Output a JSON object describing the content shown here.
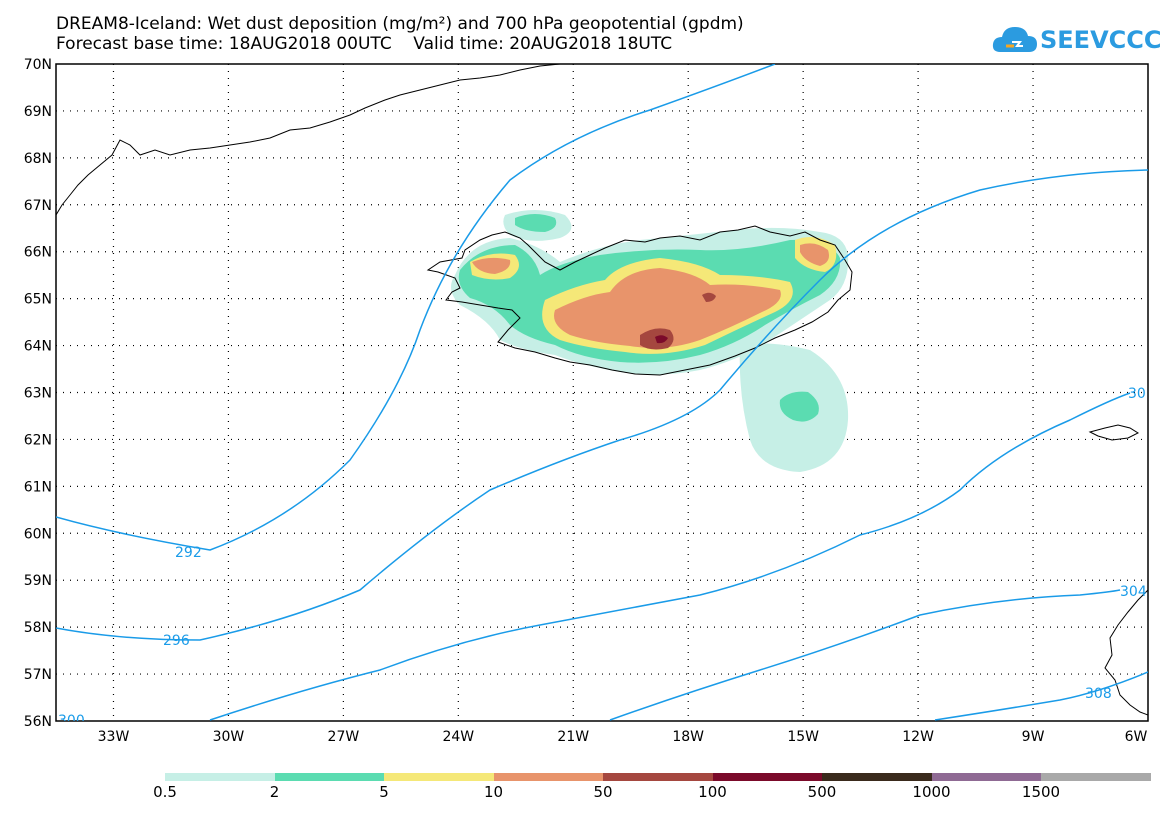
{
  "header": {
    "title_line1": "DREAM8-Iceland: Wet dust deposition (mg/m²) and 700 hPa geopotential (gpdm)",
    "title_line2": "Forecast base time: 18AUG2018 00UTC    Valid time: 20AUG2018 18UTC"
  },
  "logo": {
    "text": "SEEVCCC",
    "icon": "cloud-icon",
    "color": "#2b9be0"
  },
  "map": {
    "lat_range": [
      56,
      70
    ],
    "lon_range": [
      -34.5,
      -6
    ],
    "lat_labels": [
      "70N",
      "69N",
      "68N",
      "67N",
      "66N",
      "65N",
      "64N",
      "63N",
      "62N",
      "61N",
      "60N",
      "59N",
      "58N",
      "57N",
      "56N"
    ],
    "lon_labels": [
      "33W",
      "30W",
      "27W",
      "24W",
      "21W",
      "18W",
      "15W",
      "12W",
      "9W",
      "6W"
    ],
    "contour_color": "#1a9be8",
    "contour_labels": [
      "292",
      "296",
      "300",
      "30",
      "304",
      "308"
    ]
  },
  "legend": {
    "colors": [
      "#c6efe6",
      "#5bdcb1",
      "#f5e878",
      "#e8946b",
      "#a5473f",
      "#7b0a2a",
      "#3a2a1c",
      "#8f6a94",
      "#a9a9a9"
    ],
    "labels": [
      "0.5",
      "2",
      "5",
      "10",
      "50",
      "100",
      "500",
      "1000",
      "1500"
    ]
  }
}
